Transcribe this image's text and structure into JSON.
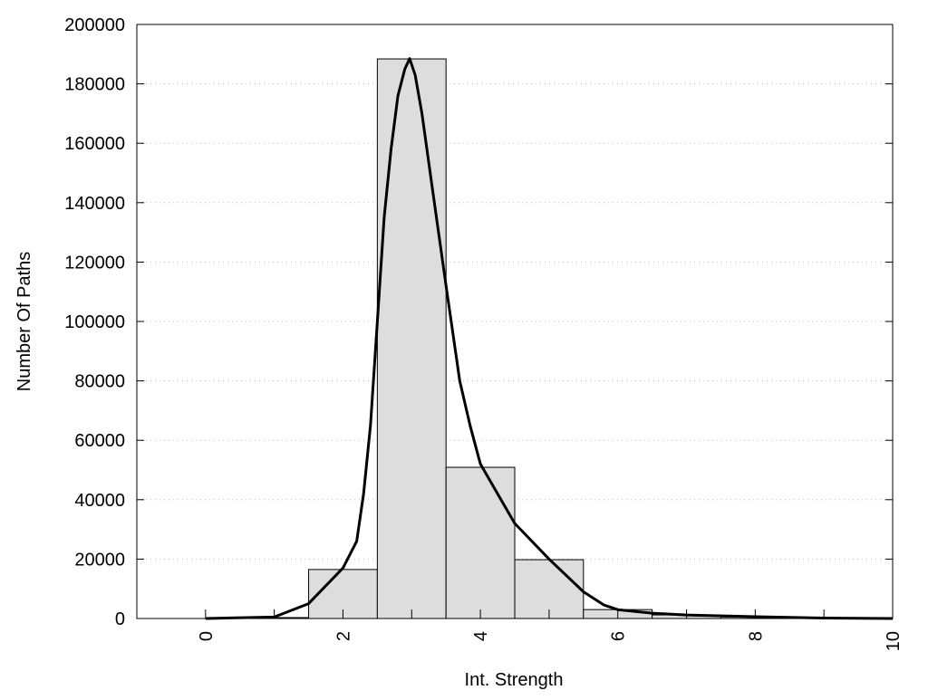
{
  "chart_data": {
    "type": "bar",
    "title": "",
    "xlabel": "Int. Strength",
    "ylabel": "Number Of Paths",
    "xlim": [
      -1,
      10
    ],
    "ylim": [
      0,
      200000
    ],
    "grid": "y-dotted",
    "xticks": [
      "0",
      "2",
      "4",
      "6",
      "8",
      "10"
    ],
    "xtick_values": [
      0,
      2,
      4,
      6,
      8,
      10
    ],
    "yticks": [
      "0",
      "20000",
      "40000",
      "60000",
      "80000",
      "100000",
      "120000",
      "140000",
      "160000",
      "180000",
      "200000"
    ],
    "ytick_values": [
      0,
      20000,
      40000,
      60000,
      80000,
      100000,
      120000,
      140000,
      160000,
      180000,
      200000
    ],
    "bars": {
      "bin_width": 1,
      "x": [
        1,
        2,
        3,
        4,
        5,
        6,
        7,
        8,
        9
      ],
      "values": [
        300,
        16500,
        188400,
        50900,
        19800,
        3000,
        1200,
        500,
        150
      ],
      "color": "#dddddd"
    },
    "curve": {
      "x": [
        0,
        1,
        1.5,
        2,
        2.2,
        2.3,
        2.4,
        2.5,
        2.6,
        2.7,
        2.8,
        2.9,
        2.97,
        3.05,
        3.15,
        3.3,
        3.5,
        3.7,
        3.85,
        4,
        4.3,
        4.5,
        5,
        5.5,
        5.8,
        6,
        6.5,
        7,
        8,
        9,
        10
      ],
      "y": [
        0,
        500,
        5000,
        17000,
        26000,
        42000,
        65000,
        100000,
        135000,
        158000,
        176000,
        185000,
        188500,
        183000,
        170000,
        145000,
        112000,
        80000,
        65000,
        52000,
        40000,
        32000,
        20000,
        9000,
        4500,
        3000,
        1800,
        1200,
        600,
        150,
        0
      ],
      "color": "#000000"
    }
  }
}
